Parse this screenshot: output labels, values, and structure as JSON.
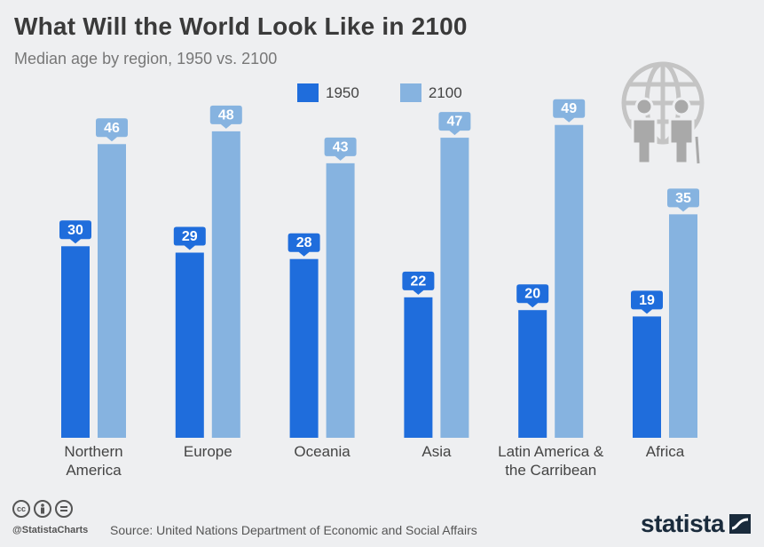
{
  "title": "What Will the World Look Like in 2100",
  "subtitle": "Median age by region, 1950 vs. 2100",
  "legend": [
    {
      "label": "1950",
      "color": "#1f6ddc"
    },
    {
      "label": "2100",
      "color": "#86b3e0"
    }
  ],
  "footer": {
    "handle": "@StatistaCharts",
    "source": "Source: United Nations Department of Economic and Social Affairs",
    "brand": "statista",
    "cc_icons": [
      "cc-icon",
      "by-icon",
      "nd-icon"
    ]
  },
  "chart_data": {
    "type": "bar",
    "categories": [
      [
        "Northern",
        "America"
      ],
      [
        "Europe"
      ],
      [
        "Oceania"
      ],
      [
        "Asia"
      ],
      [
        "Latin America &",
        "the Carribean"
      ],
      [
        "Africa"
      ]
    ],
    "series": [
      {
        "name": "1950",
        "color": "#1f6ddc",
        "values": [
          30,
          29,
          28,
          22,
          20,
          19
        ]
      },
      {
        "name": "2100",
        "color": "#86b3e0",
        "values": [
          46,
          48,
          43,
          47,
          49,
          35
        ]
      }
    ],
    "ylim": [
      0,
      58
    ],
    "grid": false,
    "legend_position": "top",
    "data_labels": true
  }
}
